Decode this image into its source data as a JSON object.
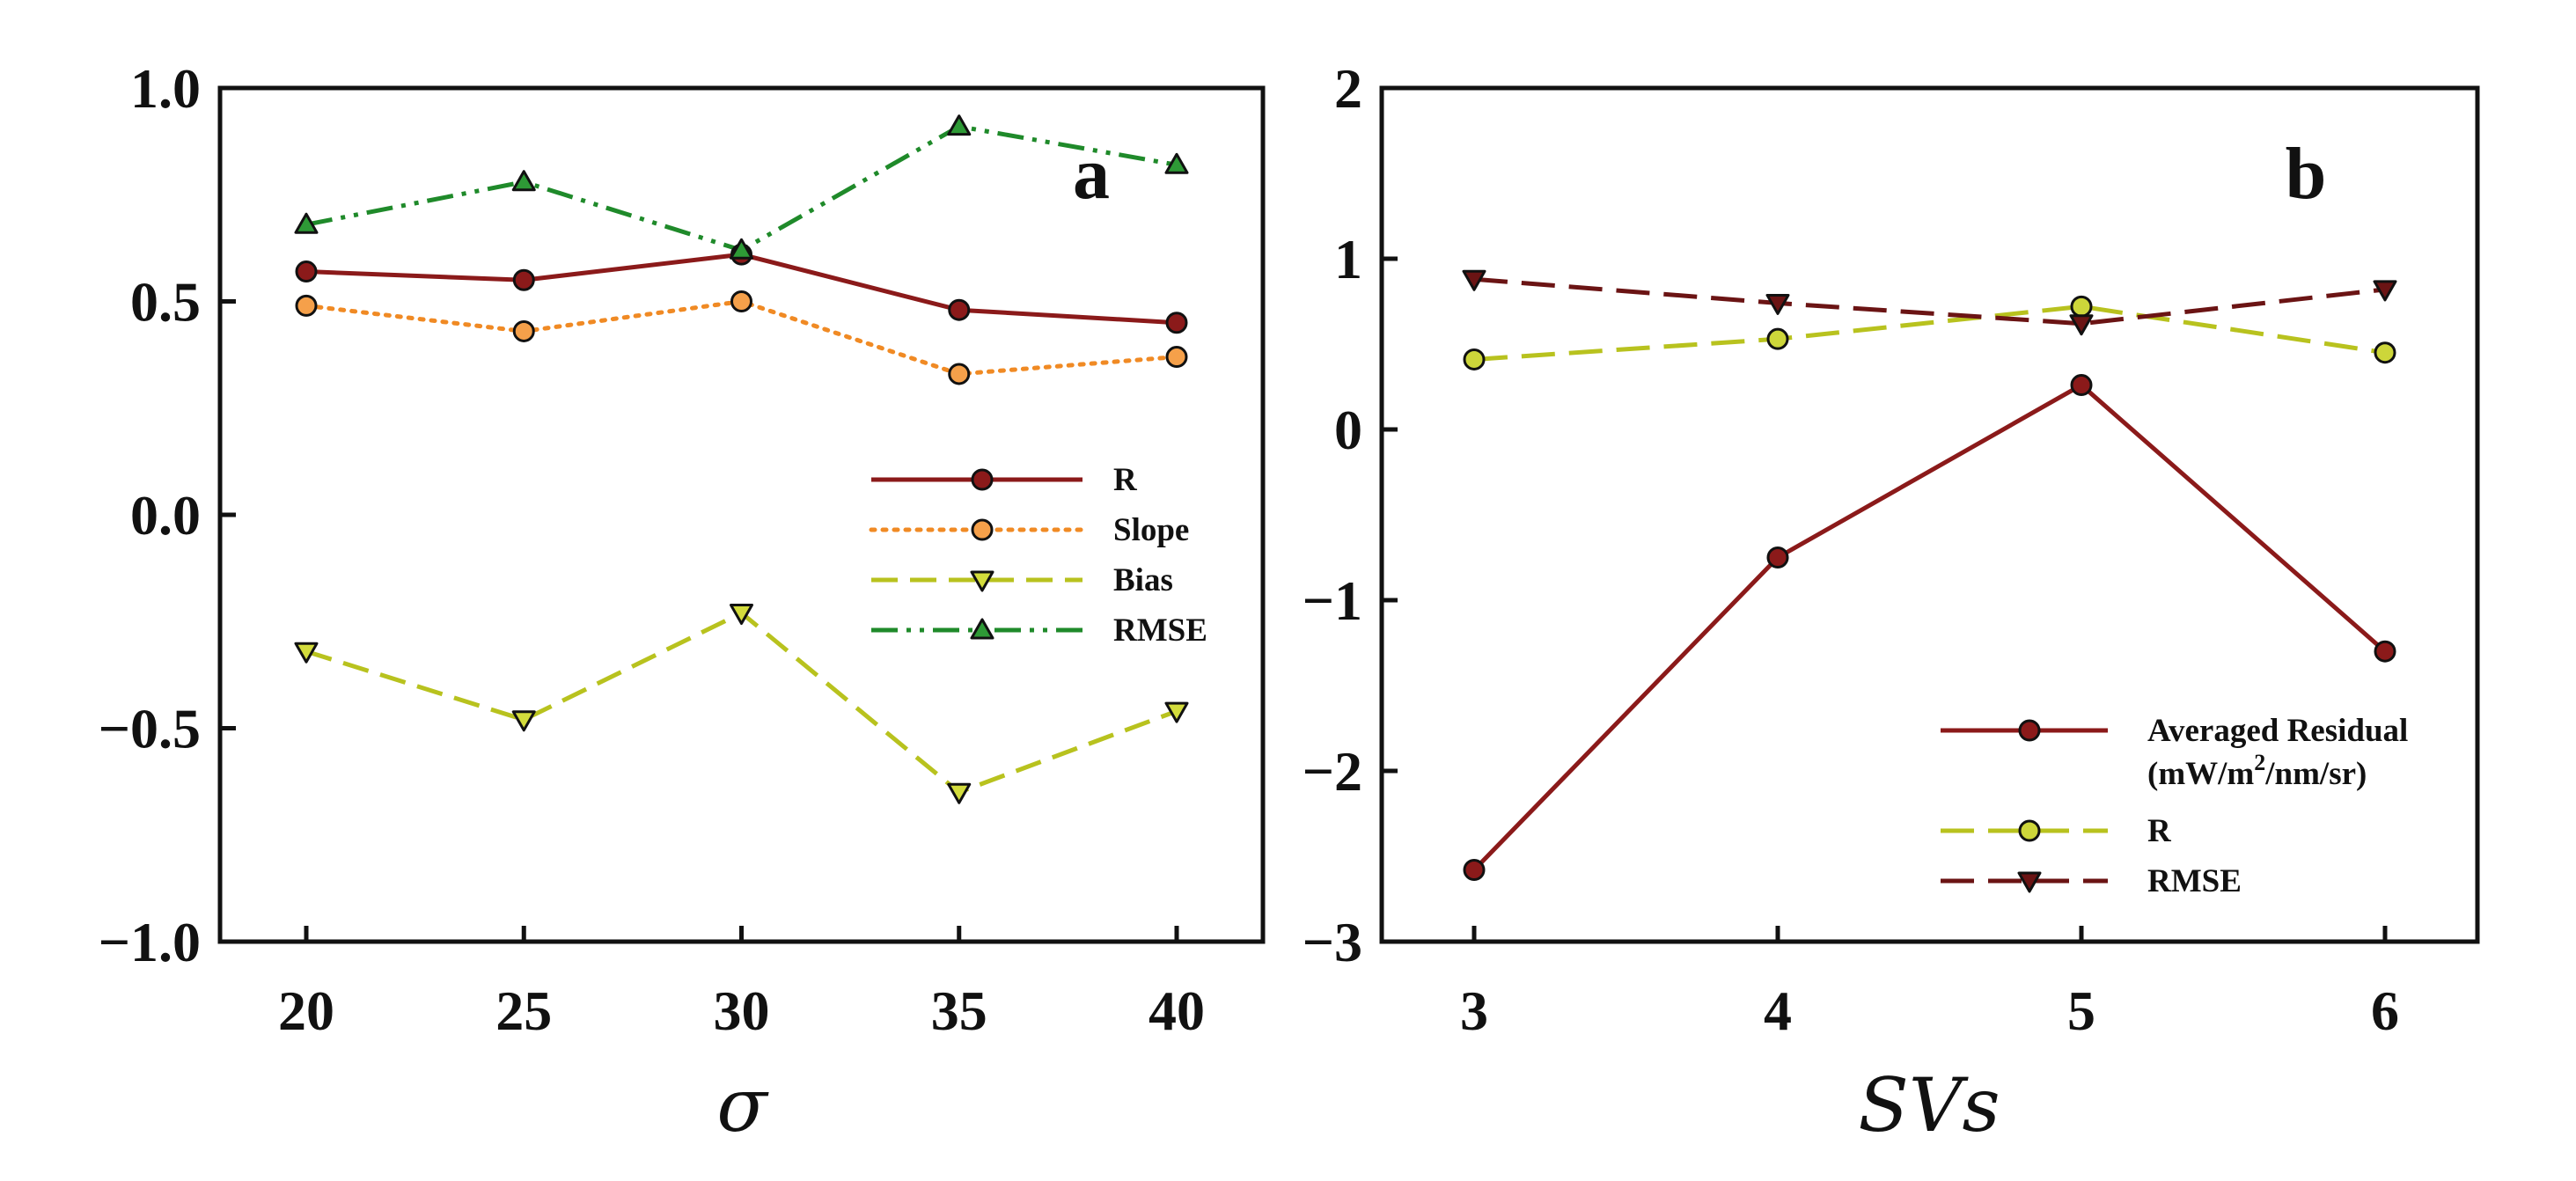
{
  "chart_data": [
    {
      "type": "line",
      "panel_label": "a",
      "xlabel": "σ",
      "ylabel": "",
      "x": [
        20,
        25,
        30,
        35,
        40
      ],
      "xticks": [
        "20",
        "25",
        "30",
        "35",
        "40"
      ],
      "ylim": [
        -1.0,
        1.0
      ],
      "yticks": [
        -1.0,
        -0.5,
        0.0,
        0.5,
        1.0
      ],
      "ytick_labels": [
        "−1.0",
        "−0.5",
        "0.0",
        "0.5",
        "1.0"
      ],
      "legend_position": "middle-right",
      "grid": false,
      "series": [
        {
          "name": "R",
          "values": [
            0.57,
            0.55,
            0.61,
            0.48,
            0.45
          ],
          "color": "#8b1a1a",
          "fill": "#8b1a1a",
          "marker": "circle",
          "dash": "solid"
        },
        {
          "name": "Slope",
          "values": [
            0.49,
            0.43,
            0.5,
            0.33,
            0.37
          ],
          "color": "#f08a24",
          "fill": "#f5a04a",
          "marker": "circle",
          "dash": "dotted"
        },
        {
          "name": "Bias",
          "values": [
            -0.32,
            -0.48,
            -0.23,
            -0.65,
            -0.46
          ],
          "color": "#b8c21e",
          "fill": "#d3dc3c",
          "marker": "triangle-down",
          "dash": "dashed"
        },
        {
          "name": "RMSE",
          "values": [
            0.68,
            0.78,
            0.62,
            0.91,
            0.82
          ],
          "color": "#1f8a2a",
          "fill": "#2e9a36",
          "marker": "triangle-up",
          "dash": "dashdotdot"
        }
      ]
    },
    {
      "type": "line",
      "panel_label": "b",
      "xlabel": "SVs",
      "ylabel": "",
      "x": [
        3,
        4,
        5,
        6
      ],
      "xticks": [
        "3",
        "4",
        "5",
        "6"
      ],
      "ylim": [
        -3,
        2
      ],
      "yticks": [
        -3,
        -2,
        -1,
        0,
        1,
        2
      ],
      "ytick_labels": [
        "−3",
        "−2",
        "−1",
        "0",
        "1",
        "2"
      ],
      "legend_position": "bottom-right",
      "grid": false,
      "series": [
        {
          "name": "Averaged Residual",
          "name_line2": "(mW/m",
          "name_sup": "2",
          "name_line2_rest": "/nm/sr)",
          "values": [
            -2.58,
            -0.75,
            0.26,
            -1.3
          ],
          "color": "#8b1a1a",
          "fill": "#8b1a1a",
          "marker": "circle",
          "dash": "solid"
        },
        {
          "name": "R",
          "values": [
            0.41,
            0.53,
            0.72,
            0.45
          ],
          "color": "#b8c21e",
          "fill": "#cdd63a",
          "marker": "circle",
          "dash": "longdash"
        },
        {
          "name": "RMSE",
          "values": [
            0.88,
            0.74,
            0.62,
            0.82
          ],
          "color": "#6b1414",
          "fill": "#6b1414",
          "marker": "triangle-down",
          "dash": "longdash"
        }
      ]
    }
  ]
}
